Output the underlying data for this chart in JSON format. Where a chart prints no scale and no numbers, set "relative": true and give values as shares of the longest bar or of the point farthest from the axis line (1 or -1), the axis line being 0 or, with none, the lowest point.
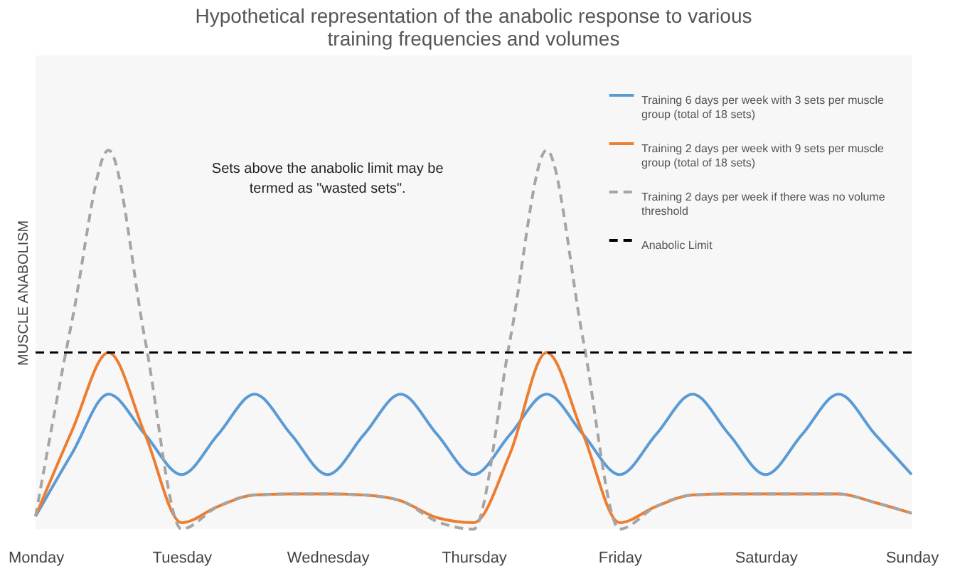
{
  "chart_data": {
    "type": "line",
    "title": "Hypothetical representation of the anabolic response to various training frequencies and volumes",
    "ylabel": "MUSCLE ANABOLISM",
    "relative": true,
    "categories": [
      "Monday",
      null,
      null,
      null,
      "Tuesday",
      null,
      null,
      null,
      "Wednesday",
      null,
      null,
      null,
      "Thursday",
      null,
      null,
      null,
      "Friday",
      null,
      null,
      null,
      "Saturday",
      null,
      null,
      null,
      "Sunday"
    ],
    "series": [
      {
        "name": "Training 6 days per week with 3 sets per muscle group (total of 18 sets)",
        "color": "#5b9bd5",
        "line_style": "solid",
        "values": [
          0.034,
          0.2,
          0.356,
          0.25,
          0.144,
          0.25,
          0.356,
          0.25,
          0.144,
          0.25,
          0.356,
          0.25,
          0.144,
          0.25,
          0.356,
          0.25,
          0.144,
          0.25,
          0.356,
          0.25,
          0.144,
          0.25,
          0.356,
          0.25,
          0.144
        ]
      },
      {
        "name": "Training 2 days per week with 9 sets per muscle group (total of 18 sets)",
        "color": "#ed7d31",
        "line_style": "solid",
        "values": [
          0.034,
          0.26,
          0.466,
          0.25,
          0.017,
          0.06,
          0.09,
          0.093,
          0.093,
          0.09,
          0.075,
          0.03,
          0.017,
          0.2,
          0.466,
          0.25,
          0.017,
          0.06,
          0.09,
          0.093,
          0.093,
          0.093,
          0.093,
          0.07,
          0.042
        ]
      },
      {
        "name": "Training 2 days per week if there was no volume threshold",
        "color": "#a5a5a5",
        "line_style": "dashed",
        "values": [
          0.034,
          0.55,
          1.0,
          0.5,
          0.0,
          0.06,
          0.09,
          0.093,
          0.093,
          0.09,
          0.075,
          0.02,
          0.0,
          0.5,
          1.0,
          0.5,
          0.0,
          0.06,
          0.09,
          0.093,
          0.093,
          0.093,
          0.093,
          0.07,
          0.042
        ]
      }
    ],
    "ref_lines": [
      {
        "axis": "y",
        "value": 0.466,
        "label": "Anabolic Limit",
        "color": "#000000",
        "line_style": "dashed"
      }
    ],
    "annotations": [
      "Sets above the anabolic limit may be termed as \"wasted sets\"."
    ],
    "legend": "top right",
    "grid": false
  }
}
